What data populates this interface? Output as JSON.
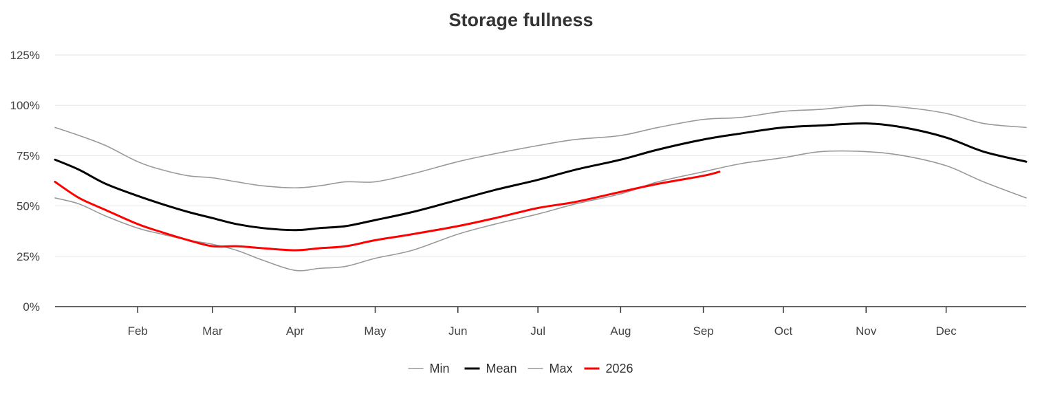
{
  "chart_data": {
    "type": "line",
    "title": "Storage fullness",
    "xlabel": "",
    "ylabel": "",
    "x_domain": [
      "Jan 1",
      "Dec 31"
    ],
    "ylim": [
      0,
      125
    ],
    "y_ticks": [
      "0%",
      "25%",
      "50%",
      "75%",
      "100%",
      "125%"
    ],
    "x_ticks": [
      "Feb",
      "Mar",
      "Apr",
      "May",
      "Jun",
      "Jul",
      "Aug",
      "Sep",
      "Oct",
      "Nov",
      "Dec"
    ],
    "grid": true,
    "legend_position": "bottom",
    "series": [
      {
        "name": "Min",
        "color": "#999999",
        "points": [
          {
            "x": "Jan 1",
            "y": 54
          },
          {
            "x": "Jan 10",
            "y": 51
          },
          {
            "x": "Jan 20",
            "y": 45
          },
          {
            "x": "Feb 1",
            "y": 39
          },
          {
            "x": "Feb 10",
            "y": 36
          },
          {
            "x": "Feb 20",
            "y": 33
          },
          {
            "x": "Mar 1",
            "y": 31
          },
          {
            "x": "Mar 10",
            "y": 28
          },
          {
            "x": "Mar 20",
            "y": 23
          },
          {
            "x": "Apr 1",
            "y": 18
          },
          {
            "x": "Apr 10",
            "y": 19
          },
          {
            "x": "Apr 20",
            "y": 20
          },
          {
            "x": "May 1",
            "y": 24
          },
          {
            "x": "May 15",
            "y": 28
          },
          {
            "x": "Jun 1",
            "y": 36
          },
          {
            "x": "Jun 15",
            "y": 41
          },
          {
            "x": "Jul 1",
            "y": 46
          },
          {
            "x": "Jul 15",
            "y": 51
          },
          {
            "x": "Aug 1",
            "y": 56
          },
          {
            "x": "Aug 15",
            "y": 62
          },
          {
            "x": "Sep 1",
            "y": 67
          },
          {
            "x": "Sep 15",
            "y": 71
          },
          {
            "x": "Oct 1",
            "y": 74
          },
          {
            "x": "Oct 15",
            "y": 77
          },
          {
            "x": "Nov 1",
            "y": 77
          },
          {
            "x": "Nov 15",
            "y": 75
          },
          {
            "x": "Dec 1",
            "y": 70
          },
          {
            "x": "Dec 15",
            "y": 62
          },
          {
            "x": "Dec 31",
            "y": 54
          }
        ]
      },
      {
        "name": "Mean",
        "color": "#000000",
        "points": [
          {
            "x": "Jan 1",
            "y": 73
          },
          {
            "x": "Jan 10",
            "y": 68
          },
          {
            "x": "Jan 20",
            "y": 61
          },
          {
            "x": "Feb 1",
            "y": 55
          },
          {
            "x": "Feb 10",
            "y": 51
          },
          {
            "x": "Feb 20",
            "y": 47
          },
          {
            "x": "Mar 1",
            "y": 44
          },
          {
            "x": "Mar 10",
            "y": 41
          },
          {
            "x": "Mar 20",
            "y": 39
          },
          {
            "x": "Apr 1",
            "y": 38
          },
          {
            "x": "Apr 10",
            "y": 39
          },
          {
            "x": "Apr 20",
            "y": 40
          },
          {
            "x": "May 1",
            "y": 43
          },
          {
            "x": "May 15",
            "y": 47
          },
          {
            "x": "Jun 1",
            "y": 53
          },
          {
            "x": "Jun 15",
            "y": 58
          },
          {
            "x": "Jul 1",
            "y": 63
          },
          {
            "x": "Jul 15",
            "y": 68
          },
          {
            "x": "Aug 1",
            "y": 73
          },
          {
            "x": "Aug 15",
            "y": 78
          },
          {
            "x": "Sep 1",
            "y": 83
          },
          {
            "x": "Sep 15",
            "y": 86
          },
          {
            "x": "Oct 1",
            "y": 89
          },
          {
            "x": "Oct 15",
            "y": 90
          },
          {
            "x": "Nov 1",
            "y": 91
          },
          {
            "x": "Nov 15",
            "y": 89
          },
          {
            "x": "Dec 1",
            "y": 84
          },
          {
            "x": "Dec 15",
            "y": 77
          },
          {
            "x": "Dec 31",
            "y": 72
          }
        ]
      },
      {
        "name": "Max",
        "color": "#999999",
        "points": [
          {
            "x": "Jan 1",
            "y": 89
          },
          {
            "x": "Jan 10",
            "y": 85
          },
          {
            "x": "Jan 20",
            "y": 80
          },
          {
            "x": "Feb 1",
            "y": 72
          },
          {
            "x": "Feb 10",
            "y": 68
          },
          {
            "x": "Feb 20",
            "y": 65
          },
          {
            "x": "Mar 1",
            "y": 64
          },
          {
            "x": "Mar 10",
            "y": 62
          },
          {
            "x": "Mar 20",
            "y": 60
          },
          {
            "x": "Apr 1",
            "y": 59
          },
          {
            "x": "Apr 10",
            "y": 60
          },
          {
            "x": "Apr 20",
            "y": 62
          },
          {
            "x": "May 1",
            "y": 62
          },
          {
            "x": "May 15",
            "y": 66
          },
          {
            "x": "Jun 1",
            "y": 72
          },
          {
            "x": "Jun 15",
            "y": 76
          },
          {
            "x": "Jul 1",
            "y": 80
          },
          {
            "x": "Jul 15",
            "y": 83
          },
          {
            "x": "Aug 1",
            "y": 85
          },
          {
            "x": "Aug 15",
            "y": 89
          },
          {
            "x": "Sep 1",
            "y": 93
          },
          {
            "x": "Sep 15",
            "y": 94
          },
          {
            "x": "Oct 1",
            "y": 97
          },
          {
            "x": "Oct 15",
            "y": 98
          },
          {
            "x": "Nov 1",
            "y": 100
          },
          {
            "x": "Nov 15",
            "y": 99
          },
          {
            "x": "Dec 1",
            "y": 96
          },
          {
            "x": "Dec 15",
            "y": 91
          },
          {
            "x": "Dec 31",
            "y": 89
          }
        ]
      },
      {
        "name": "2026",
        "color": "#ff0000",
        "points": [
          {
            "x": "Jan 1",
            "y": 62
          },
          {
            "x": "Jan 10",
            "y": 54
          },
          {
            "x": "Jan 20",
            "y": 48
          },
          {
            "x": "Feb 1",
            "y": 41
          },
          {
            "x": "Feb 10",
            "y": 37
          },
          {
            "x": "Feb 20",
            "y": 33
          },
          {
            "x": "Mar 1",
            "y": 30
          },
          {
            "x": "Mar 10",
            "y": 30
          },
          {
            "x": "Mar 20",
            "y": 29
          },
          {
            "x": "Apr 1",
            "y": 28
          },
          {
            "x": "Apr 10",
            "y": 29
          },
          {
            "x": "Apr 20",
            "y": 30
          },
          {
            "x": "May 1",
            "y": 33
          },
          {
            "x": "May 15",
            "y": 36
          },
          {
            "x": "Jun 1",
            "y": 40
          },
          {
            "x": "Jun 15",
            "y": 44
          },
          {
            "x": "Jul 1",
            "y": 49
          },
          {
            "x": "Jul 15",
            "y": 52
          },
          {
            "x": "Aug 1",
            "y": 57
          },
          {
            "x": "Aug 15",
            "y": 61
          },
          {
            "x": "Sep 1",
            "y": 65
          },
          {
            "x": "Sep 7",
            "y": 67
          }
        ]
      }
    ]
  }
}
